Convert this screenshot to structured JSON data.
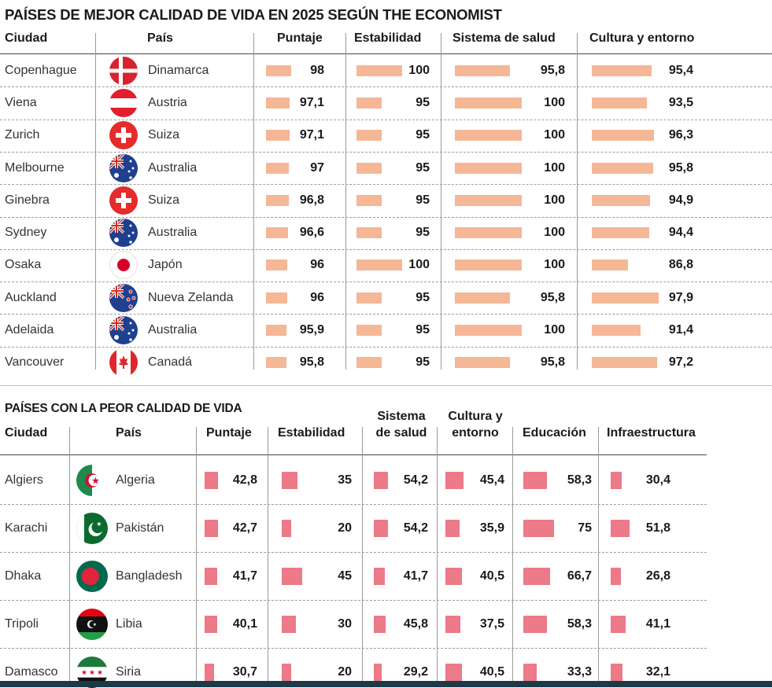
{
  "best": {
    "title": "PAÍSES DE MEJOR CALIDAD DE VIDA EN 2025 SEGÚN THE ECONOMIST",
    "headers": {
      "city": "Ciudad",
      "country": "País",
      "score": "Puntaje",
      "stability": "Estabilidad",
      "health": "Sistema de salud",
      "culture": "Cultura y entorno"
    },
    "rows": [
      {
        "city": "Copenhague",
        "country": "Dinamarca",
        "flag": "denmark-flag",
        "score": "98",
        "stability": "100",
        "health": "95,8",
        "culture": "95,4"
      },
      {
        "city": "Viena",
        "country": "Austria",
        "flag": "austria-flag",
        "score": "97,1",
        "stability": "95",
        "health": "100",
        "culture": "93,5"
      },
      {
        "city": "Zurich",
        "country": "Suiza",
        "flag": "switzerland-flag",
        "score": "97,1",
        "stability": "95",
        "health": "100",
        "culture": "96,3"
      },
      {
        "city": "Melbourne",
        "country": "Australia",
        "flag": "australia-flag",
        "score": "97",
        "stability": "95",
        "health": "100",
        "culture": "95,8"
      },
      {
        "city": "Ginebra",
        "country": "Suiza",
        "flag": "switzerland-flag",
        "score": "96,8",
        "stability": "95",
        "health": "100",
        "culture": "94,9"
      },
      {
        "city": "Sydney",
        "country": "Australia",
        "flag": "australia-flag",
        "score": "96,6",
        "stability": "95",
        "health": "100",
        "culture": "94,4"
      },
      {
        "city": "Osaka",
        "country": "Japón",
        "flag": "japan-flag",
        "score": "96",
        "stability": "100",
        "health": "100",
        "culture": "86,8"
      },
      {
        "city": "Auckland",
        "country": "Nueva Zelanda",
        "flag": "new-zealand-flag",
        "score": "96",
        "stability": "95",
        "health": "95,8",
        "culture": "97,9"
      },
      {
        "city": "Adelaida",
        "country": "Australia",
        "flag": "australia-flag",
        "score": "95,9",
        "stability": "95",
        "health": "100",
        "culture": "91,4"
      },
      {
        "city": "Vancouver",
        "country": "Canadá",
        "flag": "canada-flag",
        "score": "95,8",
        "stability": "95",
        "health": "95,8",
        "culture": "97,2"
      }
    ]
  },
  "worst": {
    "title": "PAÍSES CON LA PEOR CALIDAD DE VIDA",
    "headers": {
      "city": "Ciudad",
      "country": "País",
      "score": "Puntaje",
      "stability": "Estabilidad",
      "health_1": "Sistema",
      "health_2": "de salud",
      "culture_1": "Cultura y",
      "culture_2": "entorno",
      "education": "Educación",
      "infra": "Infraestructura"
    },
    "rows": [
      {
        "city": "Algiers",
        "country": "Algeria",
        "flag": "algeria-flag",
        "score": "42,8",
        "stability": "35",
        "health": "54,2",
        "culture": "45,4",
        "education": "58,3",
        "infra": "30,4"
      },
      {
        "city": "Karachi",
        "country": "Pakistán",
        "flag": "pakistan-flag",
        "score": "42,7",
        "stability": "20",
        "health": "54,2",
        "culture": "35,9",
        "education": "75",
        "infra": "51,8"
      },
      {
        "city": "Dhaka",
        "country": "Bangladesh",
        "flag": "bangladesh-flag",
        "score": "41,7",
        "stability": "45",
        "health": "41,7",
        "culture": "40,5",
        "education": "66,7",
        "infra": "26,8"
      },
      {
        "city": "Tripoli",
        "country": "Libia",
        "flag": "libya-flag",
        "score": "40,1",
        "stability": "30",
        "health": "45,8",
        "culture": "37,5",
        "education": "58,3",
        "infra": "41,1"
      },
      {
        "city": "Damasco",
        "country": "Siria",
        "flag": "syria-flag",
        "score": "30,7",
        "stability": "20",
        "health": "29,2",
        "culture": "40,5",
        "education": "33,3",
        "infra": "32,1"
      }
    ]
  },
  "colors": {
    "best_bar": "#f5b795",
    "worst_bar": "#ec7a88"
  },
  "chart_data": [
    {
      "type": "table",
      "title": "PAÍSES DE MEJOR CALIDAD DE VIDA EN 2025 SEGÚN THE ECONOMIST",
      "columns": [
        "Ciudad",
        "País",
        "Puntaje",
        "Estabilidad",
        "Sistema de salud",
        "Cultura y entorno"
      ],
      "series": [
        {
          "name": "Puntaje",
          "values": [
            98,
            97.1,
            97.1,
            97,
            96.8,
            96.6,
            96,
            96,
            95.9,
            95.8
          ]
        },
        {
          "name": "Estabilidad",
          "values": [
            100,
            95,
            95,
            95,
            95,
            95,
            100,
            95,
            95,
            95
          ]
        },
        {
          "name": "Sistema de salud",
          "values": [
            95.8,
            100,
            100,
            100,
            100,
            100,
            100,
            95.8,
            100,
            95.8
          ]
        },
        {
          "name": "Cultura y entorno",
          "values": [
            95.4,
            93.5,
            96.3,
            95.8,
            94.9,
            94.4,
            86.8,
            97.9,
            91.4,
            97.2
          ]
        }
      ],
      "categories": [
        "Copenhague",
        "Viena",
        "Zurich",
        "Melbourne",
        "Ginebra",
        "Sydney",
        "Osaka",
        "Auckland",
        "Adelaida",
        "Vancouver"
      ]
    },
    {
      "type": "table",
      "title": "PAÍSES CON LA PEOR CALIDAD DE VIDA",
      "columns": [
        "Ciudad",
        "País",
        "Puntaje",
        "Estabilidad",
        "Sistema de salud",
        "Cultura y entorno",
        "Educación",
        "Infraestructura"
      ],
      "series": [
        {
          "name": "Puntaje",
          "values": [
            42.8,
            42.7,
            41.7,
            40.1,
            30.7
          ]
        },
        {
          "name": "Estabilidad",
          "values": [
            35,
            20,
            45,
            30,
            20
          ]
        },
        {
          "name": "Sistema de salud",
          "values": [
            54.2,
            54.2,
            41.7,
            45.8,
            29.2
          ]
        },
        {
          "name": "Cultura y entorno",
          "values": [
            45.4,
            35.9,
            40.5,
            37.5,
            40.5
          ]
        },
        {
          "name": "Educación",
          "values": [
            58.3,
            75,
            66.7,
            58.3,
            33.3
          ]
        },
        {
          "name": "Infraestructura",
          "values": [
            30.4,
            51.8,
            26.8,
            41.1,
            32.1
          ]
        }
      ],
      "categories": [
        "Algiers",
        "Karachi",
        "Dhaka",
        "Tripoli",
        "Damasco"
      ]
    }
  ]
}
